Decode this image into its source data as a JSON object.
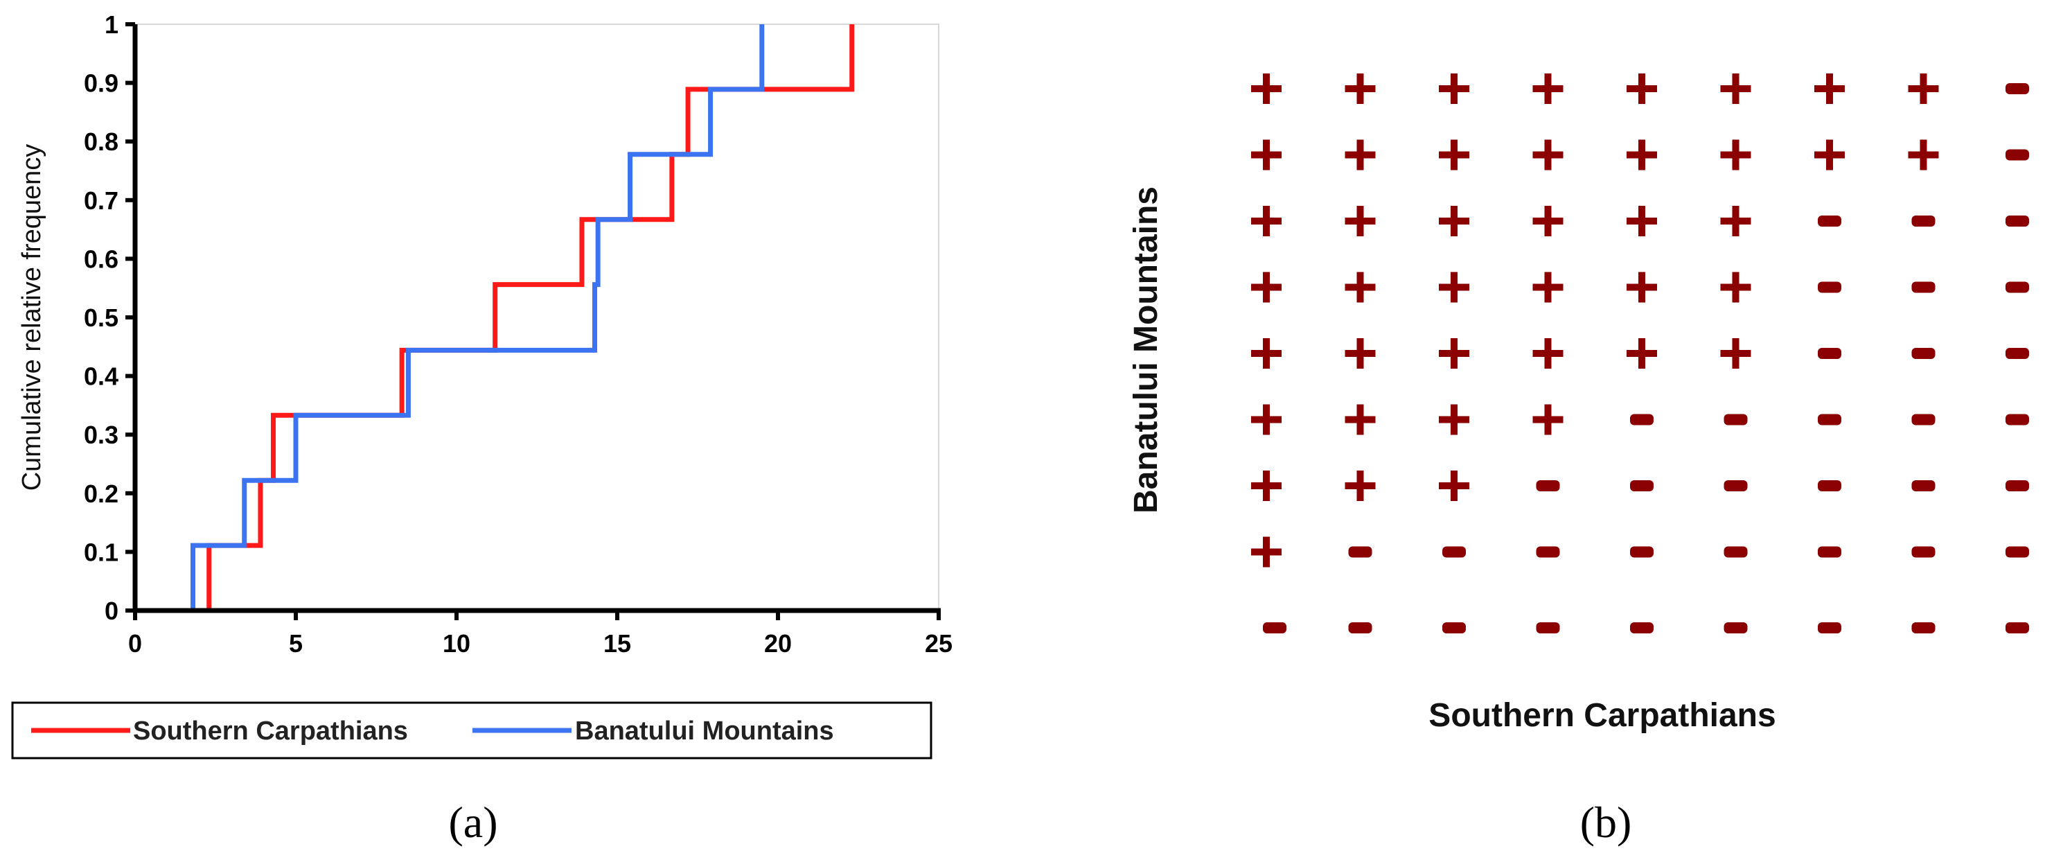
{
  "chart_data": [
    {
      "type": "line",
      "step": true,
      "panel_label": "(a)",
      "ylabel": "Cumulative relative frequency",
      "xlabel": "",
      "xlim": [
        0,
        25
      ],
      "ylim": [
        0,
        1
      ],
      "x_ticks": [
        "0",
        "5",
        "10",
        "15",
        "20",
        "25"
      ],
      "y_ticks": [
        "0",
        "0.1",
        "0.2",
        "0.3",
        "0.4",
        "0.5",
        "0.6",
        "0.7",
        "0.8",
        "0.9",
        "1"
      ],
      "legend_position": "bottom",
      "series": [
        {
          "name": "Southern Carpathians",
          "color": "#ff1a1a",
          "x": [
            2.3,
            3.9,
            4.3,
            8.3,
            11.2,
            13.9,
            16.7,
            17.2,
            22.3
          ],
          "y": [
            0.111,
            0.222,
            0.333,
            0.444,
            0.556,
            0.667,
            0.778,
            0.889,
            1.0
          ]
        },
        {
          "name": "Banatului Mountains",
          "color": "#3b73f0",
          "x": [
            1.8,
            3.4,
            5.0,
            8.5,
            14.3,
            14.4,
            15.4,
            17.9,
            19.5
          ],
          "y": [
            0.111,
            0.222,
            0.333,
            0.444,
            0.556,
            0.667,
            0.778,
            0.889,
            1.0
          ]
        }
      ]
    },
    {
      "type": "table",
      "panel_label": "(b)",
      "xlabel": "Southern Carpathians",
      "ylabel": "Banatului Mountains",
      "color": "#8b0000",
      "symbols": {
        "+": "+",
        "-": "-"
      },
      "rows": [
        [
          "+",
          "+",
          "+",
          "+",
          "+",
          "+",
          "+",
          "+",
          "-"
        ],
        [
          "+",
          "+",
          "+",
          "+",
          "+",
          "+",
          "+",
          "+",
          "-"
        ],
        [
          "+",
          "+",
          "+",
          "+",
          "+",
          "+",
          "-",
          "-",
          "-"
        ],
        [
          "+",
          "+",
          "+",
          "+",
          "+",
          "+",
          "-",
          "-",
          "-"
        ],
        [
          "+",
          "+",
          "+",
          "+",
          "+",
          "+",
          "-",
          "-",
          "-"
        ],
        [
          "+",
          "+",
          "+",
          "+",
          "-",
          "-",
          "-",
          "-",
          "-"
        ],
        [
          "+",
          "+",
          "+",
          "-",
          "-",
          "-",
          "-",
          "-",
          "-"
        ],
        [
          "+",
          "-",
          "-",
          "-",
          "-",
          "-",
          "-",
          "-",
          "-"
        ],
        [
          "-",
          "-",
          "-",
          "-",
          "-",
          "-",
          "-",
          "-",
          "-"
        ]
      ]
    }
  ]
}
